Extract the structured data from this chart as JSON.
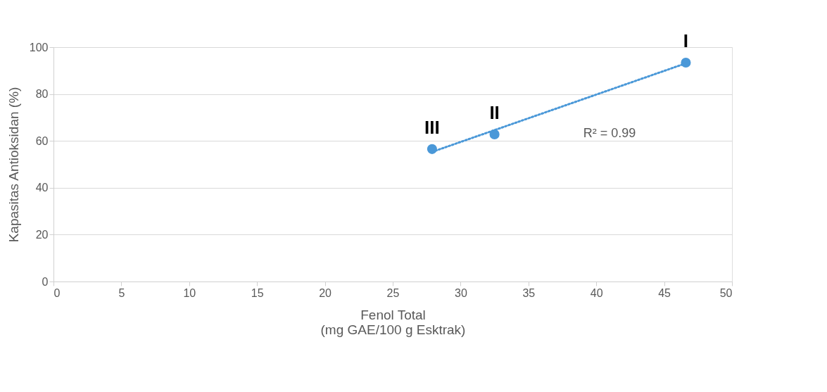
{
  "chart_data": {
    "type": "scatter",
    "xlabel": "Fenol Total\n(mg GAE/100 g Esktrak)",
    "ylabel": "Kapasitas Antioksidan (%)",
    "x": [
      46.6,
      32.5,
      27.9
    ],
    "series": [
      {
        "color": "#4a98d8",
        "values": [
          93.4,
          62.8,
          56.5
        ],
        "marker": "circle"
      },
      {
        "type": "line",
        "color": "#4a98d8",
        "x": [
          27.9,
          46.6
        ],
        "values": [
          55.3,
          93.1
        ],
        "line_style": "dotted",
        "marker": "none"
      }
    ],
    "annotations": [
      {
        "text": "I",
        "x": 46.6,
        "y": 93.4
      },
      {
        "text": "II",
        "x": 32.5,
        "y": 62.8
      },
      {
        "text": "III",
        "x": 27.9,
        "y": 56.5
      },
      "R² = 0.99"
    ],
    "xlim": [
      0,
      50
    ],
    "xticks": [
      0,
      5,
      10,
      15,
      20,
      25,
      30,
      35,
      40,
      45,
      50
    ],
    "ylim": [
      0,
      100
    ],
    "yticks": [
      0,
      20,
      40,
      60,
      80,
      100
    ],
    "grid": "y"
  }
}
